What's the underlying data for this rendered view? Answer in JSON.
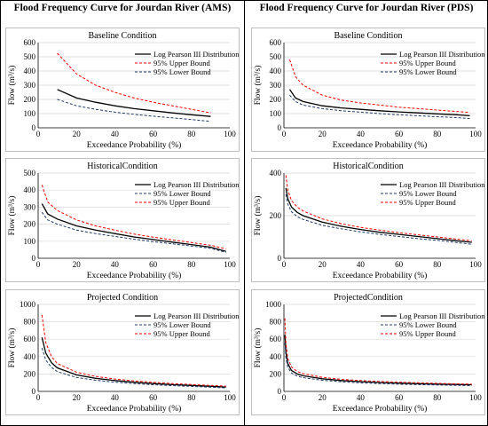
{
  "titles": {
    "left": "Flood Frequency Curve for Jourdan River (AMS)",
    "right": "Flood Frequency Curve for Jourdan River (PDS)"
  },
  "colors": {
    "lp3": "#000000",
    "upper": "#ff0000",
    "lower": "#1f3864",
    "grid": "#d9d9d9"
  },
  "chart_data": [
    {
      "type": "line",
      "title": "Baseline Condition",
      "xlabel": "Exceedance Probability (%)",
      "ylabel": "Flow (m³/s)",
      "xlim": [
        0,
        100
      ],
      "ylim": [
        0,
        600
      ],
      "xticks": [
        0,
        20,
        40,
        60,
        80,
        100
      ],
      "yticks": [
        0,
        100,
        200,
        300,
        400,
        500,
        600
      ],
      "grid": true,
      "legend": "right",
      "series": [
        {
          "name": "Log Pearson III Distribution",
          "style": "solid",
          "color": "#000000",
          "x": [
            10,
            20,
            30,
            40,
            50,
            60,
            70,
            80,
            90
          ],
          "y": [
            270,
            210,
            180,
            155,
            135,
            120,
            105,
            92,
            80
          ]
        },
        {
          "name": "95% Upper Bound",
          "style": "dashed",
          "color": "#ff0000",
          "x": [
            10,
            20,
            30,
            40,
            50,
            60,
            70,
            80,
            90
          ],
          "y": [
            525,
            380,
            300,
            250,
            210,
            180,
            155,
            130,
            105
          ]
        },
        {
          "name": "95% Lower Bound",
          "style": "dashed",
          "color": "#1f3864",
          "x": [
            10,
            20,
            30,
            40,
            50,
            60,
            70,
            80,
            90
          ],
          "y": [
            200,
            155,
            130,
            110,
            95,
            82,
            70,
            58,
            45
          ]
        }
      ]
    },
    {
      "type": "line",
      "title": "Baseline Condition",
      "xlabel": "Exceedance Probability (%)",
      "ylabel": "Flow (m³/s)",
      "xlim": [
        0,
        100
      ],
      "ylim": [
        0,
        600
      ],
      "xticks": [
        0,
        20,
        40,
        60,
        80,
        100
      ],
      "yticks": [
        0,
        100,
        200,
        300,
        400,
        500,
        600
      ],
      "grid": true,
      "legend": "right",
      "series": [
        {
          "name": "Log Pearson III Distribution",
          "style": "solid",
          "color": "#000000",
          "x": [
            3,
            6,
            10,
            20,
            30,
            40,
            50,
            60,
            70,
            80,
            90,
            97
          ],
          "y": [
            270,
            210,
            185,
            155,
            140,
            130,
            120,
            112,
            105,
            98,
            92,
            85
          ]
        },
        {
          "name": "95% Upper Bound",
          "style": "dashed",
          "color": "#ff0000",
          "x": [
            3,
            6,
            10,
            20,
            30,
            40,
            50,
            60,
            70,
            80,
            90,
            97
          ],
          "y": [
            480,
            360,
            300,
            230,
            195,
            175,
            160,
            145,
            135,
            125,
            115,
            108
          ]
        },
        {
          "name": "95% Lower Bound",
          "style": "dashed",
          "color": "#1f3864",
          "x": [
            3,
            6,
            10,
            20,
            30,
            40,
            50,
            60,
            70,
            80,
            90,
            97
          ],
          "y": [
            230,
            185,
            160,
            135,
            120,
            110,
            100,
            92,
            85,
            78,
            72,
            65
          ]
        }
      ]
    },
    {
      "type": "line",
      "title": "HistoricalCondition",
      "xlabel": "Exceedance Probability (%)",
      "ylabel": "Flow (m³/s)",
      "xlim": [
        0,
        100
      ],
      "ylim": [
        0,
        500
      ],
      "xticks": [
        0,
        20,
        40,
        60,
        80,
        100
      ],
      "yticks": [
        0,
        100,
        200,
        300,
        400,
        500
      ],
      "grid": true,
      "legend": "right",
      "series": [
        {
          "name": "Log Pearson III Distribution",
          "style": "solid",
          "color": "#000000",
          "x": [
            2,
            5,
            10,
            20,
            30,
            40,
            50,
            60,
            70,
            80,
            90,
            98
          ],
          "y": [
            320,
            260,
            230,
            190,
            165,
            145,
            125,
            110,
            95,
            80,
            65,
            40
          ]
        },
        {
          "name": "95% Lower Bound",
          "style": "dashed",
          "color": "#1f3864",
          "x": [
            2,
            5,
            10,
            20,
            30,
            40,
            50,
            60,
            70,
            80,
            90,
            98
          ],
          "y": [
            270,
            225,
            200,
            165,
            145,
            128,
            112,
            98,
            85,
            72,
            58,
            35
          ]
        },
        {
          "name": "95% Upper Bound",
          "style": "dashed",
          "color": "#ff0000",
          "x": [
            2,
            5,
            10,
            20,
            30,
            40,
            50,
            60,
            70,
            80,
            90,
            98
          ],
          "y": [
            430,
            330,
            280,
            225,
            190,
            165,
            142,
            124,
            108,
            92,
            76,
            55
          ]
        }
      ]
    },
    {
      "type": "line",
      "title": "HistoricalCondition",
      "xlabel": "Exceedance Probability (%)",
      "ylabel": "Flow (m³/s)",
      "xlim": [
        0,
        100
      ],
      "ylim": [
        0,
        400
      ],
      "xticks": [
        0,
        20,
        40,
        60,
        80,
        100
      ],
      "yticks": [
        0,
        200,
        400
      ],
      "grid": true,
      "legend": "right",
      "series": [
        {
          "name": "Log Pearson III Distribution",
          "style": "solid",
          "color": "#000000",
          "x": [
            1,
            2,
            4,
            7,
            10,
            20,
            30,
            40,
            50,
            60,
            70,
            80,
            90,
            98
          ],
          "y": [
            330,
            280,
            240,
            215,
            200,
            170,
            150,
            135,
            122,
            112,
            102,
            92,
            82,
            75
          ]
        },
        {
          "name": "95% Lower Bound",
          "style": "dashed",
          "color": "#1f3864",
          "x": [
            1,
            2,
            4,
            7,
            10,
            20,
            30,
            40,
            50,
            60,
            70,
            80,
            90,
            98
          ],
          "y": [
            300,
            255,
            218,
            195,
            182,
            155,
            138,
            124,
            112,
            102,
            92,
            84,
            74,
            66
          ]
        },
        {
          "name": "95% Upper Bound",
          "style": "dashed",
          "color": "#ff0000",
          "x": [
            1,
            2,
            4,
            7,
            10,
            20,
            30,
            40,
            50,
            60,
            70,
            80,
            90,
            98
          ],
          "y": [
            390,
            320,
            270,
            240,
            222,
            185,
            162,
            145,
            132,
            120,
            110,
            100,
            90,
            82
          ]
        }
      ]
    },
    {
      "type": "line",
      "title": "Projected Condition",
      "xlabel": "Exceedance Probability (%)",
      "ylabel": "Flow (m³/s)",
      "xlim": [
        0,
        100
      ],
      "ylim": [
        0,
        1000
      ],
      "xticks": [
        0,
        20,
        40,
        60,
        80,
        100
      ],
      "yticks": [
        0,
        200,
        400,
        600,
        800,
        1000
      ],
      "grid": true,
      "legend": "right",
      "series": [
        {
          "name": "Log Pearson III Distribution",
          "style": "solid",
          "color": "#000000",
          "x": [
            2,
            4,
            7,
            10,
            20,
            30,
            40,
            50,
            60,
            70,
            80,
            90,
            98
          ],
          "y": [
            620,
            440,
            330,
            270,
            190,
            150,
            125,
            105,
            90,
            78,
            68,
            58,
            50
          ]
        },
        {
          "name": "95% Lower Bound",
          "style": "dashed",
          "color": "#1f3864",
          "x": [
            2,
            4,
            7,
            10,
            20,
            30,
            40,
            50,
            60,
            70,
            80,
            90,
            98
          ],
          "y": [
            500,
            360,
            275,
            228,
            160,
            128,
            106,
            90,
            77,
            66,
            57,
            48,
            40
          ]
        },
        {
          "name": "95% Upper Bound",
          "style": "dashed",
          "color": "#ff0000",
          "x": [
            2,
            4,
            7,
            10,
            20,
            30,
            40,
            50,
            60,
            70,
            80,
            90,
            98
          ],
          "y": [
            880,
            560,
            400,
            320,
            220,
            172,
            142,
            120,
            104,
            90,
            79,
            68,
            60
          ]
        }
      ]
    },
    {
      "type": "line",
      "title": "ProjectedCondition",
      "xlabel": "Exceedance Probability (%)",
      "ylabel": "Flow (m³/s)",
      "xlim": [
        0,
        100
      ],
      "ylim": [
        0,
        1000
      ],
      "xticks": [
        0,
        20,
        40,
        60,
        80,
        100
      ],
      "yticks": [
        0,
        200,
        400,
        600,
        800,
        1000
      ],
      "grid": true,
      "legend": "right",
      "series": [
        {
          "name": "Log Pearson III Distribution",
          "style": "solid",
          "color": "#000000",
          "x": [
            0.5,
            1,
            2,
            4,
            7,
            10,
            20,
            30,
            40,
            50,
            60,
            70,
            80,
            90,
            98
          ],
          "y": [
            650,
            450,
            320,
            240,
            200,
            180,
            145,
            125,
            112,
            102,
            95,
            89,
            84,
            80,
            77
          ]
        },
        {
          "name": "95% Lower Bound",
          "style": "dashed",
          "color": "#1f3864",
          "x": [
            0.5,
            1,
            2,
            4,
            7,
            10,
            20,
            30,
            40,
            50,
            60,
            70,
            80,
            90,
            98
          ],
          "y": [
            560,
            390,
            280,
            210,
            176,
            158,
            128,
            110,
            98,
            90,
            83,
            78,
            73,
            69,
            66
          ]
        },
        {
          "name": "95% Upper Bound",
          "style": "dashed",
          "color": "#ff0000",
          "x": [
            0.5,
            1,
            2,
            4,
            7,
            10,
            20,
            30,
            40,
            50,
            60,
            70,
            80,
            90,
            98
          ],
          "y": [
            840,
            560,
            380,
            280,
            228,
            204,
            162,
            138,
            124,
            113,
            105,
            98,
            92,
            87,
            83
          ]
        }
      ]
    }
  ]
}
